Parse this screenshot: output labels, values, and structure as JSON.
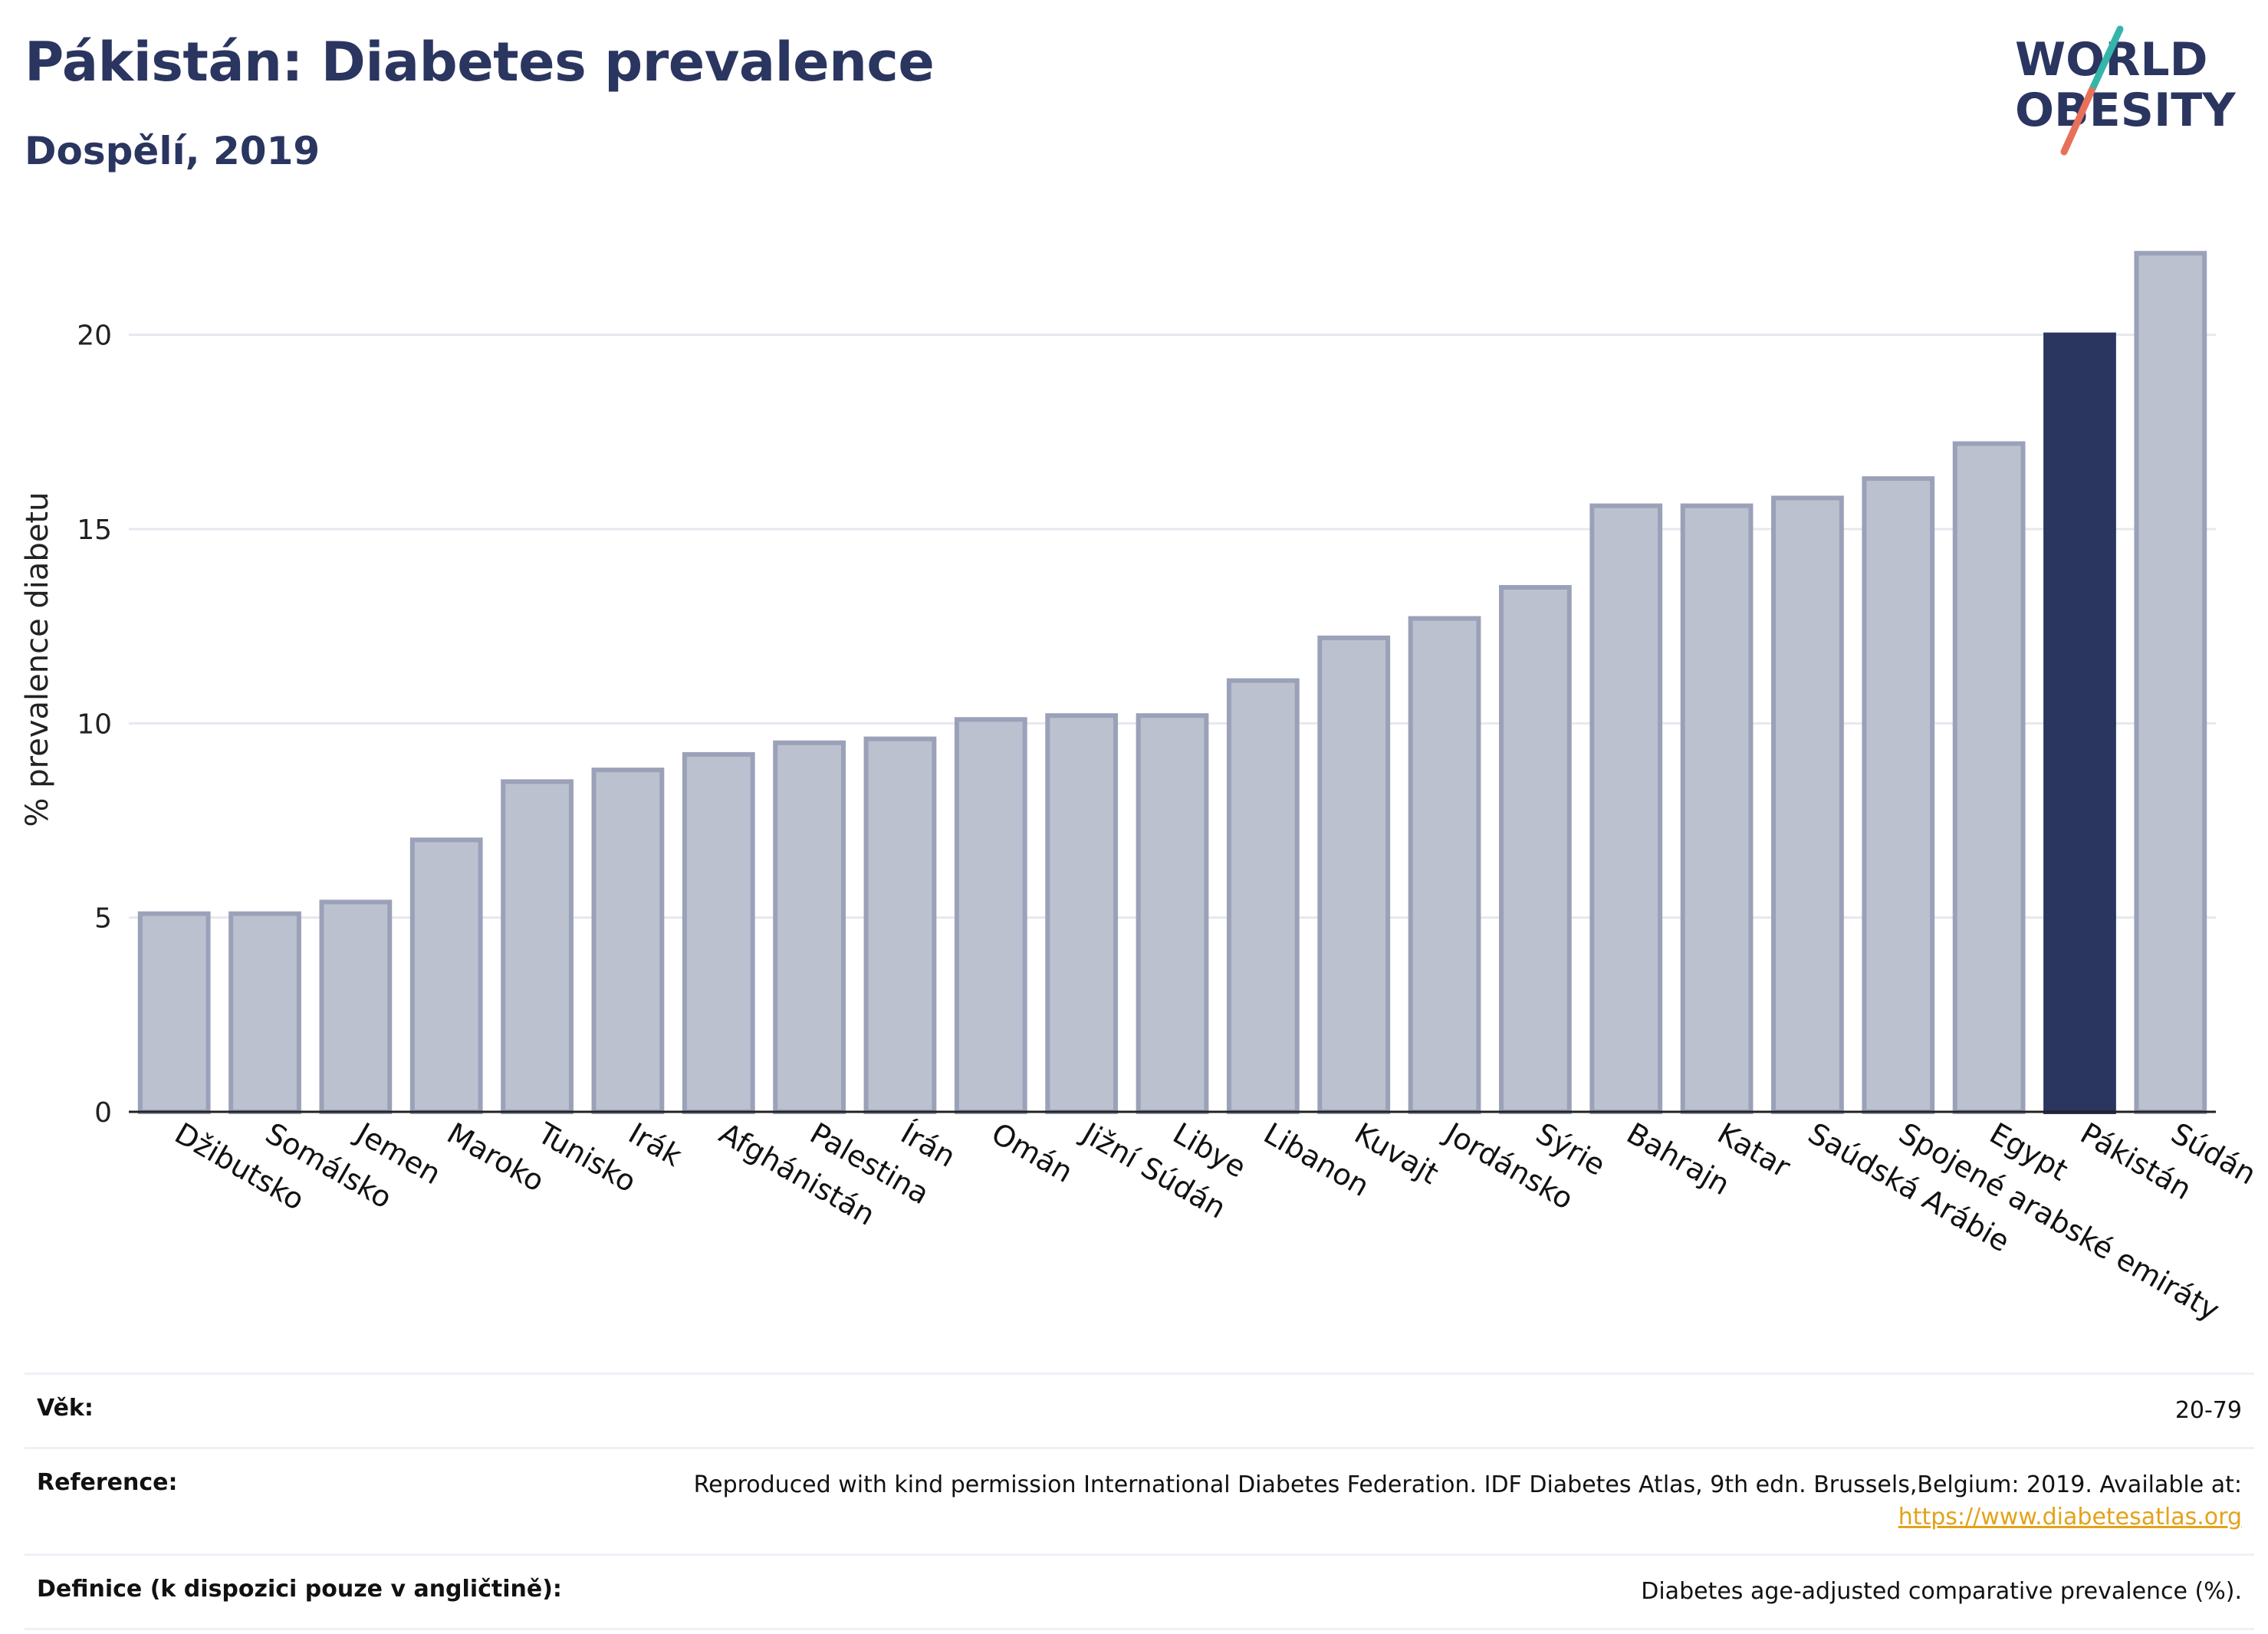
{
  "header": {
    "title": "Pákistán: Diabetes prevalence",
    "subtitle": "Dospělí, 2019"
  },
  "logo": {
    "line1": "WORLD",
    "line2": "OBESITY"
  },
  "colors": {
    "highlight_bar": "#2a3560",
    "other_bar": "#bcc1cf",
    "bar_stroke": "#9aa1b8",
    "gridline": "#e6e8ef",
    "text": "#2a3560"
  },
  "chart_data": {
    "type": "bar",
    "title": "Pákistán: Diabetes prevalence",
    "subtitle": "Dospělí, 2019",
    "xlabel": "",
    "ylabel": "% prevalence diabetu",
    "ylim": [
      0,
      22.5
    ],
    "yticks": [
      0,
      5,
      10,
      15,
      20
    ],
    "grid": true,
    "highlight": "Pákistán",
    "categories": [
      "Džibutsko",
      "Somálsko",
      "Jemen",
      "Maroko",
      "Tunisko",
      "Irák",
      "Afghánistán",
      "Palestina",
      "Írán",
      "Omán",
      "Jižní Súdán",
      "Libye",
      "Libanon",
      "Kuvajt",
      "Jordánsko",
      "Sýrie",
      "Bahrajn",
      "Katar",
      "Saúdská Arábie",
      "Spojené arabské emiráty",
      "Egypt",
      "Pákistán",
      "Súdán"
    ],
    "values": [
      5.1,
      5.1,
      5.4,
      7.0,
      8.5,
      8.8,
      9.2,
      9.5,
      9.6,
      10.1,
      10.2,
      10.2,
      11.1,
      12.2,
      12.7,
      13.5,
      15.6,
      15.6,
      15.8,
      16.3,
      17.2,
      20.0,
      22.1
    ]
  },
  "info": {
    "age_label": "Věk:",
    "age_value": "20-79",
    "reference_label": "Reference:",
    "reference_value": "Reproduced with kind permission International Diabetes Federation. IDF Diabetes Atlas, 9th edn. Brussels,Belgium: 2019. Available at:",
    "reference_link": "https://www.diabetesatlas.org",
    "definition_label": "Definice (k dispozici pouze v angličtině):",
    "definition_value": "Diabetes age-adjusted comparative prevalence (%)."
  }
}
